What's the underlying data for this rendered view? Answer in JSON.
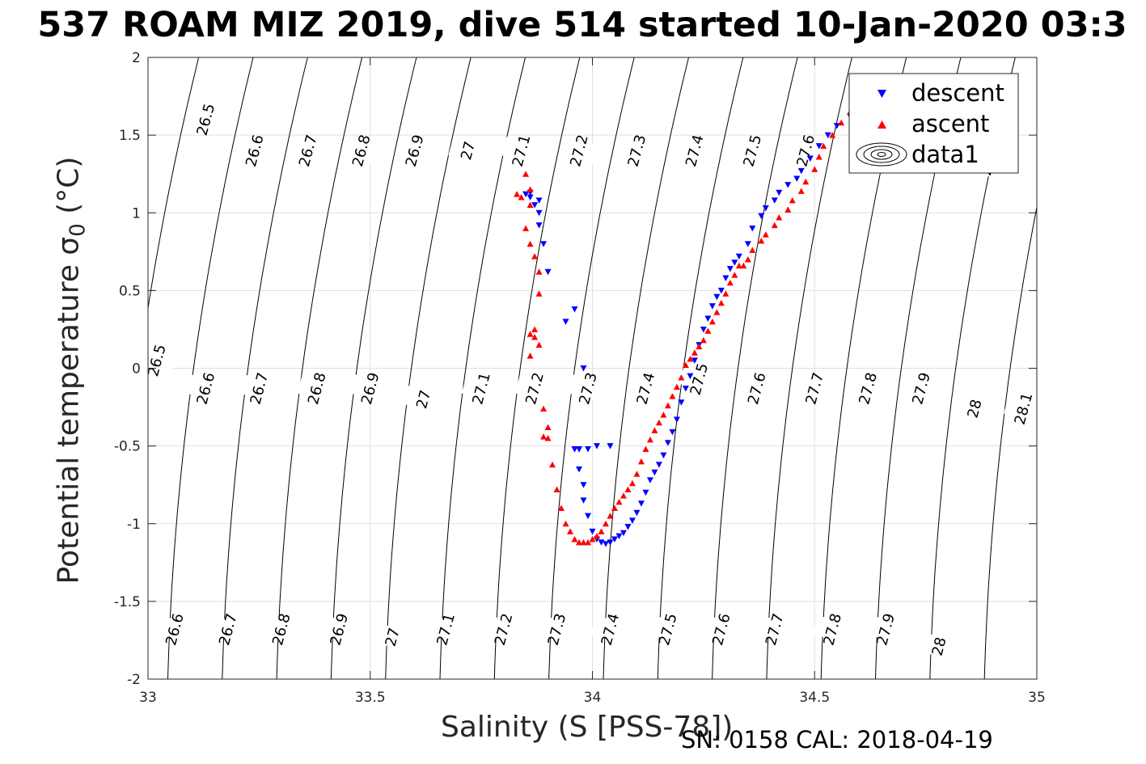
{
  "chart_data": {
    "type": "scatter",
    "title": "537 ROAM MIZ 2019, dive 514 started 10-Jan-2020 03:3",
    "xlabel": "Salinity (S [PSS-78])",
    "ylabel": "Potential temperature σ",
    "ylabel_subscript": "0",
    "ylabel_unit": " (°C)",
    "xlim": [
      33,
      35
    ],
    "ylim": [
      -2,
      2
    ],
    "xticks": [
      "33",
      "33.5",
      "34",
      "34.5",
      "35"
    ],
    "yticks": [
      "-2",
      "-1.5",
      "-1",
      "-0.5",
      "0",
      "0.5",
      "1",
      "1.5",
      "2"
    ],
    "grid": true,
    "legend_position": "top-right",
    "legend": [
      "descent",
      "ascent",
      "data1"
    ],
    "contour_labels": [
      {
        "text": "26.5",
        "x": 33.13,
        "y": 1.6
      },
      {
        "text": "26.6",
        "x": 33.24,
        "y": 1.4
      },
      {
        "text": "26.7",
        "x": 33.36,
        "y": 1.4
      },
      {
        "text": "26.8",
        "x": 33.48,
        "y": 1.4
      },
      {
        "text": "26.9",
        "x": 33.6,
        "y": 1.4
      },
      {
        "text": "27",
        "x": 33.72,
        "y": 1.4
      },
      {
        "text": "27.1",
        "x": 33.84,
        "y": 1.4
      },
      {
        "text": "27.2",
        "x": 33.97,
        "y": 1.4
      },
      {
        "text": "27.3",
        "x": 34.1,
        "y": 1.4
      },
      {
        "text": "27.4",
        "x": 34.23,
        "y": 1.4
      },
      {
        "text": "27.5",
        "x": 34.36,
        "y": 1.4
      },
      {
        "text": "27.6",
        "x": 34.48,
        "y": 1.4
      },
      {
        "text": "28",
        "x": 34.89,
        "y": 1.3
      },
      {
        "text": "26.5",
        "x": 33.02,
        "y": 0.05
      },
      {
        "text": "26.6",
        "x": 33.13,
        "y": -0.13
      },
      {
        "text": "26.7",
        "x": 33.25,
        "y": -0.13
      },
      {
        "text": "26.8",
        "x": 33.38,
        "y": -0.13
      },
      {
        "text": "26.9",
        "x": 33.5,
        "y": -0.13
      },
      {
        "text": "27",
        "x": 33.62,
        "y": -0.2
      },
      {
        "text": "27.1",
        "x": 33.75,
        "y": -0.13
      },
      {
        "text": "27.2",
        "x": 33.87,
        "y": -0.13
      },
      {
        "text": "27.3",
        "x": 33.99,
        "y": -0.13
      },
      {
        "text": "27.4",
        "x": 34.12,
        "y": -0.13
      },
      {
        "text": "27.5",
        "x": 34.24,
        "y": -0.07
      },
      {
        "text": "27.6",
        "x": 34.37,
        "y": -0.13
      },
      {
        "text": "27.7",
        "x": 34.5,
        "y": -0.13
      },
      {
        "text": "27.8",
        "x": 34.62,
        "y": -0.13
      },
      {
        "text": "27.9",
        "x": 34.74,
        "y": -0.13
      },
      {
        "text": "28",
        "x": 34.86,
        "y": -0.26
      },
      {
        "text": "28.1",
        "x": 34.97,
        "y": -0.26
      },
      {
        "text": "26.6",
        "x": 33.06,
        "y": -1.68
      },
      {
        "text": "26.7",
        "x": 33.18,
        "y": -1.68
      },
      {
        "text": "26.8",
        "x": 33.3,
        "y": -1.68
      },
      {
        "text": "26.9",
        "x": 33.43,
        "y": -1.68
      },
      {
        "text": "27",
        "x": 33.55,
        "y": -1.73
      },
      {
        "text": "27.1",
        "x": 33.67,
        "y": -1.68
      },
      {
        "text": "27.2",
        "x": 33.8,
        "y": -1.68
      },
      {
        "text": "27.3",
        "x": 33.92,
        "y": -1.68
      },
      {
        "text": "27.4",
        "x": 34.04,
        "y": -1.68
      },
      {
        "text": "27.5",
        "x": 34.17,
        "y": -1.68
      },
      {
        "text": "27.6",
        "x": 34.29,
        "y": -1.68
      },
      {
        "text": "27.7",
        "x": 34.41,
        "y": -1.68
      },
      {
        "text": "27.8",
        "x": 34.54,
        "y": -1.68
      },
      {
        "text": "27.9",
        "x": 34.66,
        "y": -1.68
      },
      {
        "text": "28",
        "x": 34.78,
        "y": -1.79
      }
    ],
    "series": [
      {
        "name": "descent",
        "color": "#0000ff",
        "marker": "triangle-down",
        "x": [
          34.63,
          34.6,
          34.58,
          34.55,
          34.53,
          34.51,
          34.49,
          34.47,
          34.46,
          34.44,
          34.42,
          34.41,
          34.39,
          34.38,
          34.36,
          34.35,
          34.33,
          34.32,
          34.31,
          34.3,
          34.29,
          34.28,
          34.27,
          34.26,
          34.25,
          34.24,
          34.23,
          34.22,
          34.21,
          34.2,
          34.19,
          34.18,
          34.17,
          34.16,
          34.15,
          34.14,
          34.13,
          34.12,
          34.11,
          34.1,
          34.09,
          34.08,
          34.07,
          34.06,
          34.05,
          34.04,
          34.03,
          34.02,
          34.01,
          34.0,
          33.99,
          33.98,
          33.98,
          33.97,
          33.97,
          33.96,
          33.96,
          33.97,
          33.99,
          34.01,
          34.04,
          33.98,
          33.94,
          33.96,
          33.9,
          33.89,
          33.88,
          33.87,
          33.86,
          33.85,
          33.86,
          33.88,
          33.88
        ],
        "y": [
          1.78,
          1.7,
          1.62,
          1.56,
          1.5,
          1.43,
          1.35,
          1.27,
          1.22,
          1.18,
          1.13,
          1.08,
          1.03,
          0.98,
          0.9,
          0.8,
          0.72,
          0.68,
          0.64,
          0.58,
          0.5,
          0.46,
          0.4,
          0.32,
          0.25,
          0.15,
          0.05,
          -0.05,
          -0.13,
          -0.22,
          -0.33,
          -0.41,
          -0.48,
          -0.56,
          -0.62,
          -0.67,
          -0.72,
          -0.8,
          -0.87,
          -0.93,
          -0.98,
          -1.02,
          -1.06,
          -1.08,
          -1.1,
          -1.12,
          -1.13,
          -1.12,
          -1.1,
          -1.05,
          -0.95,
          -0.85,
          -0.75,
          -0.65,
          -0.52,
          -0.52,
          -0.52,
          -0.52,
          -0.52,
          -0.5,
          -0.5,
          0.0,
          0.3,
          0.38,
          0.62,
          0.8,
          0.92,
          1.05,
          1.1,
          1.12,
          1.13,
          1.08,
          1.0
        ]
      },
      {
        "name": "ascent",
        "color": "#ff0000",
        "marker": "triangle-up",
        "x": [
          34.66,
          34.63,
          34.6,
          34.58,
          34.56,
          34.54,
          34.52,
          34.51,
          34.5,
          34.48,
          34.47,
          34.45,
          34.44,
          34.42,
          34.41,
          34.39,
          34.38,
          34.36,
          34.35,
          34.34,
          34.33,
          34.32,
          34.31,
          34.3,
          34.29,
          34.28,
          34.27,
          34.26,
          34.25,
          34.24,
          34.23,
          34.22,
          34.21,
          34.2,
          34.19,
          34.18,
          34.17,
          34.16,
          34.15,
          34.14,
          34.13,
          34.12,
          34.11,
          34.1,
          34.09,
          34.08,
          34.07,
          34.06,
          34.05,
          34.04,
          34.03,
          34.02,
          34.01,
          34.0,
          33.99,
          33.98,
          33.97,
          33.96,
          33.95,
          33.94,
          33.93,
          33.92,
          33.91,
          33.9,
          33.9,
          33.89,
          33.89,
          33.88,
          33.87,
          33.86,
          33.86,
          33.87,
          33.88,
          33.88,
          33.87,
          33.86,
          33.85,
          33.86,
          33.86,
          33.85,
          33.84,
          33.83
        ],
        "y": [
          1.86,
          1.8,
          1.72,
          1.65,
          1.58,
          1.5,
          1.43,
          1.36,
          1.28,
          1.2,
          1.14,
          1.08,
          1.02,
          0.97,
          0.92,
          0.86,
          0.82,
          0.76,
          0.7,
          0.66,
          0.66,
          0.6,
          0.55,
          0.48,
          0.42,
          0.36,
          0.3,
          0.24,
          0.18,
          0.14,
          0.1,
          0.06,
          0.02,
          -0.06,
          -0.12,
          -0.18,
          -0.24,
          -0.3,
          -0.35,
          -0.4,
          -0.46,
          -0.52,
          -0.6,
          -0.68,
          -0.74,
          -0.78,
          -0.82,
          -0.86,
          -0.9,
          -0.95,
          -1.0,
          -1.05,
          -1.08,
          -1.1,
          -1.12,
          -1.12,
          -1.12,
          -1.1,
          -1.05,
          -1.0,
          -0.9,
          -0.78,
          -0.62,
          -0.45,
          -0.38,
          -0.26,
          -0.44,
          0.15,
          0.2,
          0.08,
          0.22,
          0.25,
          0.48,
          0.62,
          0.72,
          0.8,
          0.9,
          1.05,
          1.15,
          1.25,
          1.1,
          1.12
        ]
      }
    ]
  },
  "footer": {
    "serial_cal": "SN: 0158  CAL: 2018-04-19"
  }
}
